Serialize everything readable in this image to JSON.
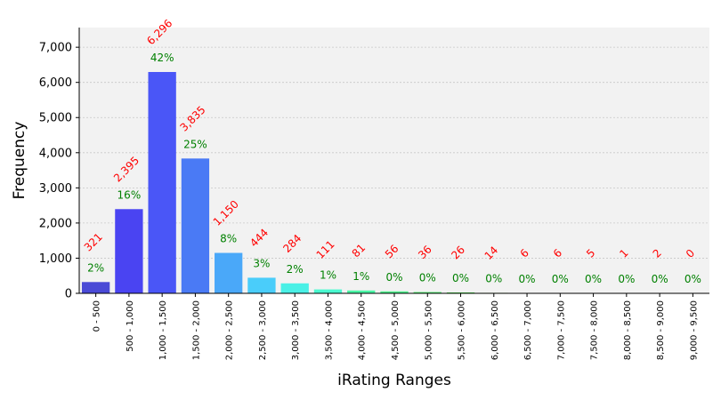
{
  "chart_data": {
    "type": "bar",
    "xlabel": "iRating Ranges",
    "ylabel": "Frequency",
    "ylim": [
      0,
      7560
    ],
    "yticks": [
      0,
      1000,
      2000,
      3000,
      4000,
      5000,
      6000,
      7000
    ],
    "ytick_labels": [
      "0",
      "1,000",
      "2,000",
      "3,000",
      "4,000",
      "5,000",
      "6,000",
      "7,000"
    ],
    "grid": true,
    "categories": [
      "0 - 500",
      "500 - 1,000",
      "1,000 - 1,500",
      "1,500 - 2,000",
      "2,000 - 2,500",
      "2,500 - 3,000",
      "3,000 - 3,500",
      "3,500 - 4,000",
      "4,000 - 4,500",
      "4,500 - 5,000",
      "5,000 - 5,500",
      "5,500 - 6,000",
      "6,000 - 6,500",
      "6,500 - 7,000",
      "7,000 - 7,500",
      "7,500 - 8,000",
      "8,000 - 8,500",
      "8,500 - 9,000",
      "9,000 - 9,500"
    ],
    "values": [
      321,
      2395,
      6296,
      3835,
      1150,
      444,
      284,
      111,
      81,
      56,
      36,
      26,
      14,
      6,
      6,
      5,
      1,
      2,
      0
    ],
    "count_labels": [
      "321",
      "2,395",
      "6,296",
      "3,835",
      "1,150",
      "444",
      "284",
      "111",
      "81",
      "56",
      "36",
      "26",
      "14",
      "6",
      "6",
      "5",
      "1",
      "2",
      "0"
    ],
    "percent_labels": [
      "2%",
      "16%",
      "42%",
      "25%",
      "8%",
      "3%",
      "2%",
      "1%",
      "1%",
      "0%",
      "0%",
      "0%",
      "0%",
      "0%",
      "0%",
      "0%",
      "0%",
      "0%",
      "0%"
    ],
    "colors": [
      "#4a4ad6",
      "#4a44f2",
      "#4a56f7",
      "#4a7af5",
      "#4aa8f9",
      "#4acdfa",
      "#4af0e6",
      "#4afad0",
      "#4af6a6",
      "#4af08a",
      "#4ae86a",
      "#52e050",
      "#6ed84a",
      "#8ad04a",
      "#a6c84a",
      "#c0c04a",
      "#d4b84a",
      "#e4ae4a",
      "#f0a04a"
    ],
    "count_label_color": "#ff0000",
    "percent_label_color": "#008000",
    "plot_background": "#f2f2f2",
    "grid_color": "#c8c8c8"
  }
}
